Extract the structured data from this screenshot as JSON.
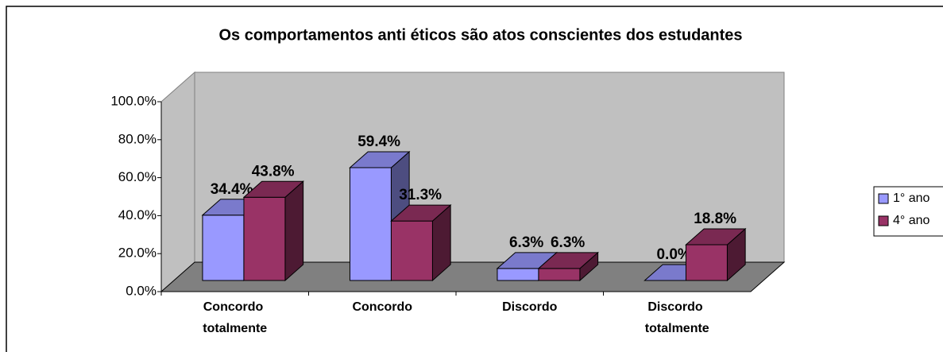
{
  "chart_data": {
    "type": "bar3d",
    "title": "Os comportamentos anti éticos são atos conscientes dos estudantes",
    "categories": [
      "Concordo totalmente",
      "Concordo",
      "Discordo",
      "Discordo totalmente"
    ],
    "series": [
      {
        "name": "1° ano",
        "color": "#9999ff",
        "values": [
          34.4,
          59.4,
          6.3,
          0.0
        ],
        "value_labels": [
          "34.4%",
          "59.4%",
          "6.3%",
          "0.0%"
        ]
      },
      {
        "name": "4° ano",
        "color": "#993366",
        "values": [
          43.8,
          31.3,
          6.3,
          18.8
        ],
        "value_labels": [
          "43.8%",
          "31.3%",
          "6.3%",
          "18.8%"
        ]
      }
    ],
    "ylim": [
      0,
      100
    ],
    "yticks": [
      {
        "value": 0,
        "label": "0.0%"
      },
      {
        "value": 20,
        "label": "20.0%"
      },
      {
        "value": 40,
        "label": "40.0%"
      },
      {
        "value": 60,
        "label": "60.0%"
      },
      {
        "value": 80,
        "label": "80.0%"
      },
      {
        "value": 100,
        "label": "100.0%"
      }
    ],
    "legend": "right"
  }
}
